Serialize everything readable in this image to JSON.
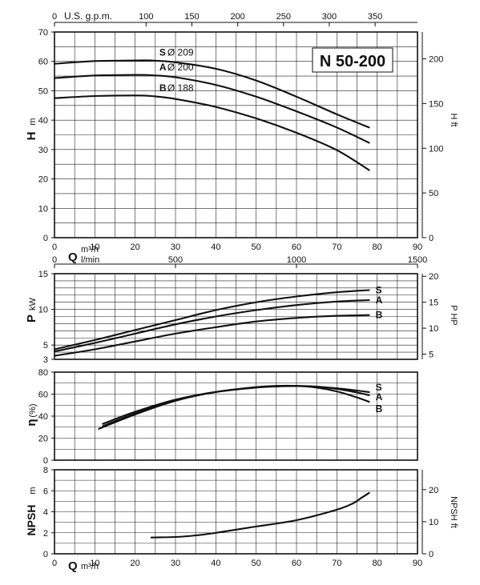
{
  "title": "N 50-200",
  "chart_data": [
    {
      "id": "head",
      "type": "line",
      "ylabel_main": "H",
      "ylabel_unit": "m",
      "y2label": "H ft",
      "xlabel_main": "Q",
      "xlabel_unit1": "m³/h",
      "xlabel_unit2": "l/min",
      "top_axis_label": "U.S. g.p.m.",
      "xlim": [
        0,
        90
      ],
      "ylim": [
        0,
        70
      ],
      "x_ticks": [
        0,
        10,
        20,
        30,
        40,
        50,
        60,
        70,
        80,
        90
      ],
      "y_ticks": [
        0,
        10,
        20,
        30,
        40,
        50,
        60,
        70
      ],
      "top_ticks": [
        0,
        100,
        150,
        200,
        250,
        300,
        350
      ],
      "y2_ticks": [
        0,
        50,
        100,
        150,
        200
      ],
      "lmin_ticks": [
        0,
        500,
        1000,
        1500
      ],
      "series": [
        {
          "name": "S",
          "diameter": "Ø 209",
          "x": [
            0,
            10,
            20,
            24,
            30,
            40,
            50,
            60,
            70,
            78
          ],
          "y": [
            59.2,
            60.1,
            60.3,
            60.3,
            59.7,
            57.5,
            53.5,
            48,
            42,
            37.5
          ]
        },
        {
          "name": "A",
          "diameter": "Ø 200",
          "x": [
            0,
            10,
            20,
            24,
            30,
            40,
            50,
            60,
            70,
            78
          ],
          "y": [
            54.3,
            55.2,
            55.4,
            55.3,
            54.6,
            52,
            48,
            43,
            37.5,
            32.3
          ]
        },
        {
          "name": "B",
          "diameter": "Ø 188",
          "x": [
            0,
            10,
            20,
            24,
            30,
            40,
            50,
            60,
            70,
            78
          ],
          "y": [
            47.5,
            48.2,
            48.4,
            48.2,
            47.2,
            44.5,
            40.6,
            35.7,
            29.8,
            23
          ]
        }
      ]
    },
    {
      "id": "power",
      "type": "line",
      "ylabel_main": "P",
      "ylabel_unit": "kW",
      "y2label": "P HP",
      "xlim": [
        0,
        90
      ],
      "ylim": [
        3,
        15
      ],
      "y_ticks": [
        3,
        5,
        10,
        15
      ],
      "y2_ticks": [
        5,
        10,
        15,
        20
      ],
      "series": [
        {
          "name": "S",
          "x": [
            0,
            10,
            20,
            30,
            40,
            50,
            60,
            70,
            78
          ],
          "y": [
            4.4,
            5.7,
            7.1,
            8.5,
            9.9,
            11,
            11.8,
            12.4,
            12.7
          ]
        },
        {
          "name": "A",
          "x": [
            0,
            10,
            20,
            30,
            40,
            50,
            60,
            70,
            78
          ],
          "y": [
            4.1,
            5.3,
            6.6,
            7.9,
            9,
            9.9,
            10.6,
            11.1,
            11.3
          ]
        },
        {
          "name": "B",
          "x": [
            0,
            10,
            20,
            30,
            40,
            50,
            60,
            70,
            78
          ],
          "y": [
            3.5,
            4.4,
            5.5,
            6.6,
            7.5,
            8.3,
            8.8,
            9.1,
            9.2
          ]
        }
      ]
    },
    {
      "id": "efficiency",
      "type": "line",
      "ylabel_main": "η",
      "ylabel_unit": "(%)",
      "xlim": [
        0,
        90
      ],
      "ylim": [
        0,
        80
      ],
      "y_ticks": [
        0,
        20,
        40,
        60,
        80
      ],
      "series": [
        {
          "name": "S",
          "x": [
            12,
            20,
            30,
            40,
            50,
            55,
            60,
            65,
            70,
            75,
            78
          ],
          "y": [
            33,
            44,
            55,
            62,
            66,
            67,
            67.3,
            66.7,
            65.3,
            63.3,
            61.8
          ]
        },
        {
          "name": "A",
          "x": [
            12,
            20,
            30,
            40,
            50,
            55,
            60,
            65,
            70,
            75,
            78
          ],
          "y": [
            31,
            42.5,
            54.5,
            62,
            66.2,
            67.2,
            67.5,
            66.8,
            64.8,
            61.5,
            59
          ]
        },
        {
          "name": "B",
          "x": [
            11,
            20,
            30,
            40,
            50,
            55,
            60,
            65,
            70,
            75,
            78
          ],
          "y": [
            28.5,
            41.5,
            54,
            62,
            66.4,
            67.5,
            67.5,
            66,
            62.5,
            57,
            53
          ]
        }
      ]
    },
    {
      "id": "npsh",
      "type": "line",
      "ylabel_main": "NPSH",
      "ylabel_unit": "m",
      "y2label": "NPSH ft",
      "xlabel_main": "Q",
      "xlabel_unit1": "m³/h",
      "xlim": [
        0,
        90
      ],
      "ylim": [
        0,
        8
      ],
      "x_ticks": [
        0,
        10,
        20,
        30,
        40,
        50,
        60,
        70,
        80,
        90
      ],
      "y_ticks": [
        0,
        2,
        4,
        6,
        8
      ],
      "y2_ticks": [
        0,
        10,
        20
      ],
      "series": [
        {
          "name": "",
          "x": [
            24,
            30,
            35,
            40,
            50,
            60,
            70,
            74,
            76,
            78
          ],
          "y": [
            1.55,
            1.6,
            1.75,
            2.0,
            2.6,
            3.2,
            4.2,
            4.8,
            5.3,
            5.8
          ]
        }
      ]
    }
  ]
}
